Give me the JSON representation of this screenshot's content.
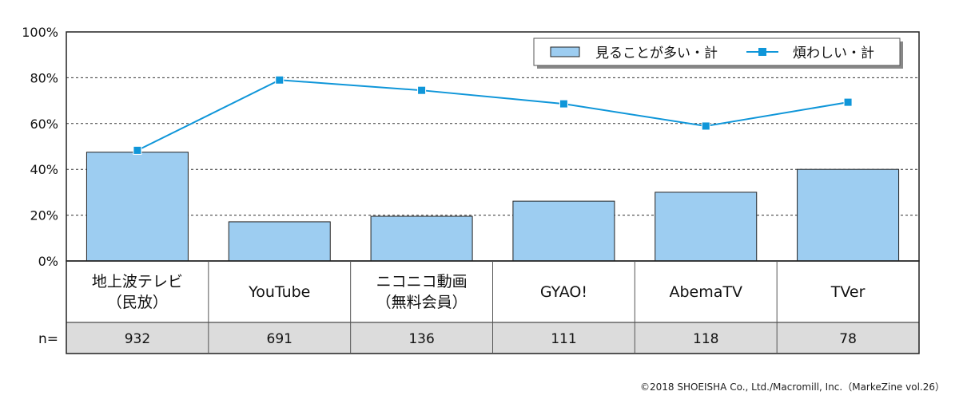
{
  "chart_data": {
    "type": "bar",
    "categories": [
      [
        "地上波テレビ",
        "（民放）"
      ],
      [
        "YouTube"
      ],
      [
        "ニコニコ動画",
        "（無料会員）"
      ],
      [
        "GYAO!"
      ],
      [
        "AbemaTV"
      ],
      [
        "TVer"
      ]
    ],
    "n_label": "n=",
    "n_values": [
      "932",
      "691",
      "136",
      "111",
      "118",
      "78"
    ],
    "series": [
      {
        "name": "見ることが多い・計",
        "kind": "bar",
        "values": [
          47.5,
          17.1,
          19.5,
          26.1,
          30.0,
          40.0
        ],
        "color": "#9dcdf1"
      },
      {
        "name": "煩わしい・計",
        "kind": "line",
        "values": [
          48.3,
          79.0,
          74.5,
          68.6,
          58.9,
          69.3
        ],
        "color": "#0f96d9"
      }
    ],
    "ylim": [
      0,
      100
    ],
    "yticks": [
      "0%",
      "20%",
      "40%",
      "60%",
      "80%",
      "100%"
    ],
    "grid": true,
    "legend": "top-right"
  },
  "footer": {
    "copyright": "©2018 SHOEISHA Co., Ltd./Macromill, Inc.（MarkeZine vol.26）"
  }
}
